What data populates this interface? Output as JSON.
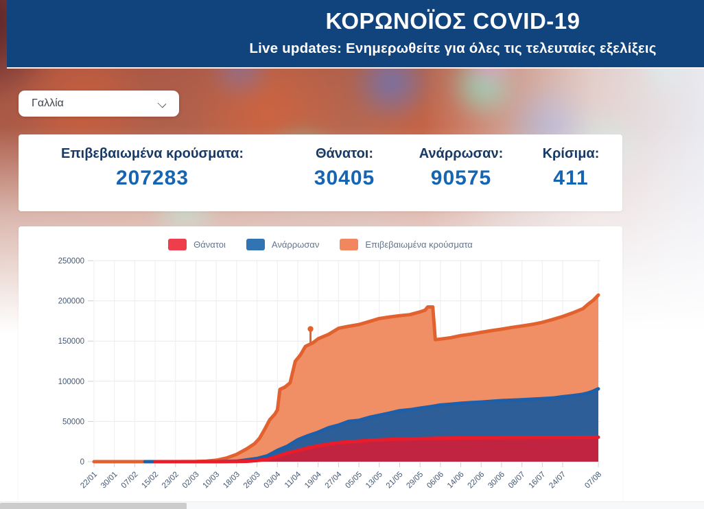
{
  "header": {
    "title": "ΚΟΡΩΝΟΪΟΣ COVID-19",
    "subtitle": "Live updates: Ενημερωθείτε για όλες τις τελευταίες εξελίξεις",
    "bg_color": "#11437c"
  },
  "country_select": {
    "value": "Γαλλία"
  },
  "stats": [
    {
      "label": "Επιβεβαιωμένα κρούσματα:",
      "value": "207283"
    },
    {
      "label": "Θάνατοι:",
      "value": "30405"
    },
    {
      "label": "Ανάρρωσαν:",
      "value": "90575"
    },
    {
      "label": "Κρίσιμα:",
      "value": "411"
    }
  ],
  "chart_data": {
    "type": "area",
    "title": "",
    "xlabel": "",
    "ylabel": "",
    "ylim": [
      0,
      250000
    ],
    "grid": true,
    "legend_position": "top-center",
    "legend": [
      {
        "label": "Θάνατοι",
        "color": "#ee3e4c"
      },
      {
        "label": "Ανάρρωσαν",
        "color": "#3273b4"
      },
      {
        "label": "Επιβεβαιωμένα κρούσματα",
        "color": "#f0875f"
      }
    ],
    "y_ticks": [
      0,
      50000,
      100000,
      150000,
      200000,
      250000
    ],
    "x_ticks": [
      {
        "d": 0,
        "label": "22/01"
      },
      {
        "d": 8,
        "label": "30/01"
      },
      {
        "d": 16,
        "label": "07/02"
      },
      {
        "d": 24,
        "label": "15/02"
      },
      {
        "d": 32,
        "label": "23/02"
      },
      {
        "d": 40,
        "label": "02/03"
      },
      {
        "d": 48,
        "label": "10/03"
      },
      {
        "d": 56,
        "label": "18/03"
      },
      {
        "d": 64,
        "label": "26/03"
      },
      {
        "d": 72,
        "label": "03/04"
      },
      {
        "d": 80,
        "label": "11/04"
      },
      {
        "d": 88,
        "label": "19/04"
      },
      {
        "d": 96,
        "label": "27/04"
      },
      {
        "d": 104,
        "label": "05/05"
      },
      {
        "d": 112,
        "label": "13/05"
      },
      {
        "d": 120,
        "label": "21/05"
      },
      {
        "d": 128,
        "label": "29/05"
      },
      {
        "d": 136,
        "label": "06/06"
      },
      {
        "d": 144,
        "label": "14/06"
      },
      {
        "d": 152,
        "label": "22/06"
      },
      {
        "d": 160,
        "label": "30/06"
      },
      {
        "d": 168,
        "label": "08/07"
      },
      {
        "d": 176,
        "label": "16/07"
      },
      {
        "d": 184,
        "label": "24/07"
      },
      {
        "d": 198,
        "label": "07/08"
      }
    ],
    "series": [
      {
        "name": "Επιβεβαιωμένα κρούσματα",
        "line_color": "#e2622f",
        "fill_color": "#f08f66",
        "points": [
          [
            0,
            0
          ],
          [
            8,
            6
          ],
          [
            16,
            11
          ],
          [
            24,
            12
          ],
          [
            32,
            12
          ],
          [
            40,
            191
          ],
          [
            44,
            653
          ],
          [
            48,
            1784
          ],
          [
            52,
            4499
          ],
          [
            56,
            9134
          ],
          [
            60,
            16018
          ],
          [
            63,
            22304
          ],
          [
            65,
            29155
          ],
          [
            67,
            40174
          ],
          [
            69,
            52128
          ],
          [
            71,
            59105
          ],
          [
            72,
            64338
          ],
          [
            73,
            89953
          ],
          [
            75,
            92839
          ],
          [
            77,
            98010
          ],
          [
            79,
            124869
          ],
          [
            81,
            132591
          ],
          [
            83,
            143303
          ],
          [
            86,
            147969
          ],
          [
            88,
            152894
          ],
          [
            92,
            158183
          ],
          [
            96,
            165842
          ],
          [
            100,
            168396
          ],
          [
            104,
            170551
          ],
          [
            108,
            174191
          ],
          [
            112,
            178060
          ],
          [
            116,
            179927
          ],
          [
            120,
            181575
          ],
          [
            124,
            182847
          ],
          [
            128,
            186238
          ],
          [
            130,
            188450
          ],
          [
            131,
            192444
          ],
          [
            133,
            192444
          ],
          [
            134,
            151677
          ],
          [
            136,
            152444
          ],
          [
            140,
            154188
          ],
          [
            144,
            156813
          ],
          [
            148,
            158641
          ],
          [
            152,
            160847
          ],
          [
            156,
            162936
          ],
          [
            160,
            164801
          ],
          [
            164,
            166960
          ],
          [
            168,
            168810
          ],
          [
            172,
            170752
          ],
          [
            176,
            173304
          ],
          [
            180,
            176754
          ],
          [
            184,
            180528
          ],
          [
            188,
            185196
          ],
          [
            192,
            190346
          ],
          [
            194,
            195904
          ],
          [
            196,
            200739
          ],
          [
            198,
            207283
          ]
        ]
      },
      {
        "name": "Ανάρρωσαν",
        "line_color": "#1d5fa8",
        "fill_color": "#2e5e98",
        "points": [
          [
            20,
            4
          ],
          [
            24,
            11
          ],
          [
            32,
            12
          ],
          [
            40,
            12
          ],
          [
            48,
            12
          ],
          [
            56,
            602
          ],
          [
            60,
            2200
          ],
          [
            64,
            3900
          ],
          [
            68,
            7202
          ],
          [
            72,
            14008
          ],
          [
            76,
            19337
          ],
          [
            80,
            27186
          ],
          [
            84,
            32297
          ],
          [
            88,
            36578
          ],
          [
            92,
            42088
          ],
          [
            96,
            45513
          ],
          [
            100,
            50212
          ],
          [
            104,
            51371
          ],
          [
            108,
            55027
          ],
          [
            112,
            57785
          ],
          [
            116,
            60448
          ],
          [
            120,
            63354
          ],
          [
            124,
            64617
          ],
          [
            128,
            66584
          ],
          [
            132,
            68355
          ],
          [
            136,
            70504
          ],
          [
            140,
            71506
          ],
          [
            144,
            72572
          ],
          [
            148,
            73422
          ],
          [
            152,
            74117
          ],
          [
            156,
            75060
          ],
          [
            160,
            75952
          ],
          [
            168,
            77060
          ],
          [
            176,
            78388
          ],
          [
            180,
            79077
          ],
          [
            184,
            80815
          ],
          [
            188,
            82166
          ],
          [
            192,
            83848
          ],
          [
            194,
            85534
          ],
          [
            196,
            87746
          ],
          [
            198,
            90575
          ]
        ]
      },
      {
        "name": "Θάνατοι",
        "line_color": "#ea1c2a",
        "fill_color": "#c12441",
        "points": [
          [
            24,
            1
          ],
          [
            32,
            2
          ],
          [
            40,
            3
          ],
          [
            48,
            33
          ],
          [
            52,
            79
          ],
          [
            56,
            175
          ],
          [
            60,
            450
          ],
          [
            64,
            1331
          ],
          [
            68,
            3024
          ],
          [
            72,
            6507
          ],
          [
            76,
            10869
          ],
          [
            80,
            13832
          ],
          [
            84,
            17167
          ],
          [
            88,
            19718
          ],
          [
            92,
            21856
          ],
          [
            96,
            23660
          ],
          [
            100,
            24760
          ],
          [
            104,
            25531
          ],
          [
            108,
            26646
          ],
          [
            112,
            27074
          ],
          [
            116,
            27625
          ],
          [
            120,
            28132
          ],
          [
            124,
            28432
          ],
          [
            128,
            28662
          ],
          [
            132,
            28940
          ],
          [
            136,
            29142
          ],
          [
            140,
            29346
          ],
          [
            144,
            29398
          ],
          [
            148,
            29603
          ],
          [
            152,
            29663
          ],
          [
            156,
            29813
          ],
          [
            160,
            29843
          ],
          [
            164,
            29920
          ],
          [
            168,
            29979
          ],
          [
            172,
            30029
          ],
          [
            176,
            30123
          ],
          [
            180,
            30165
          ],
          [
            184,
            30195
          ],
          [
            192,
            30294
          ],
          [
            198,
            30405
          ]
        ]
      }
    ],
    "outlier": {
      "series": "Επιβεβαιωμένα κρούσματα",
      "day": 85,
      "value": 165027,
      "from": 146000
    }
  }
}
